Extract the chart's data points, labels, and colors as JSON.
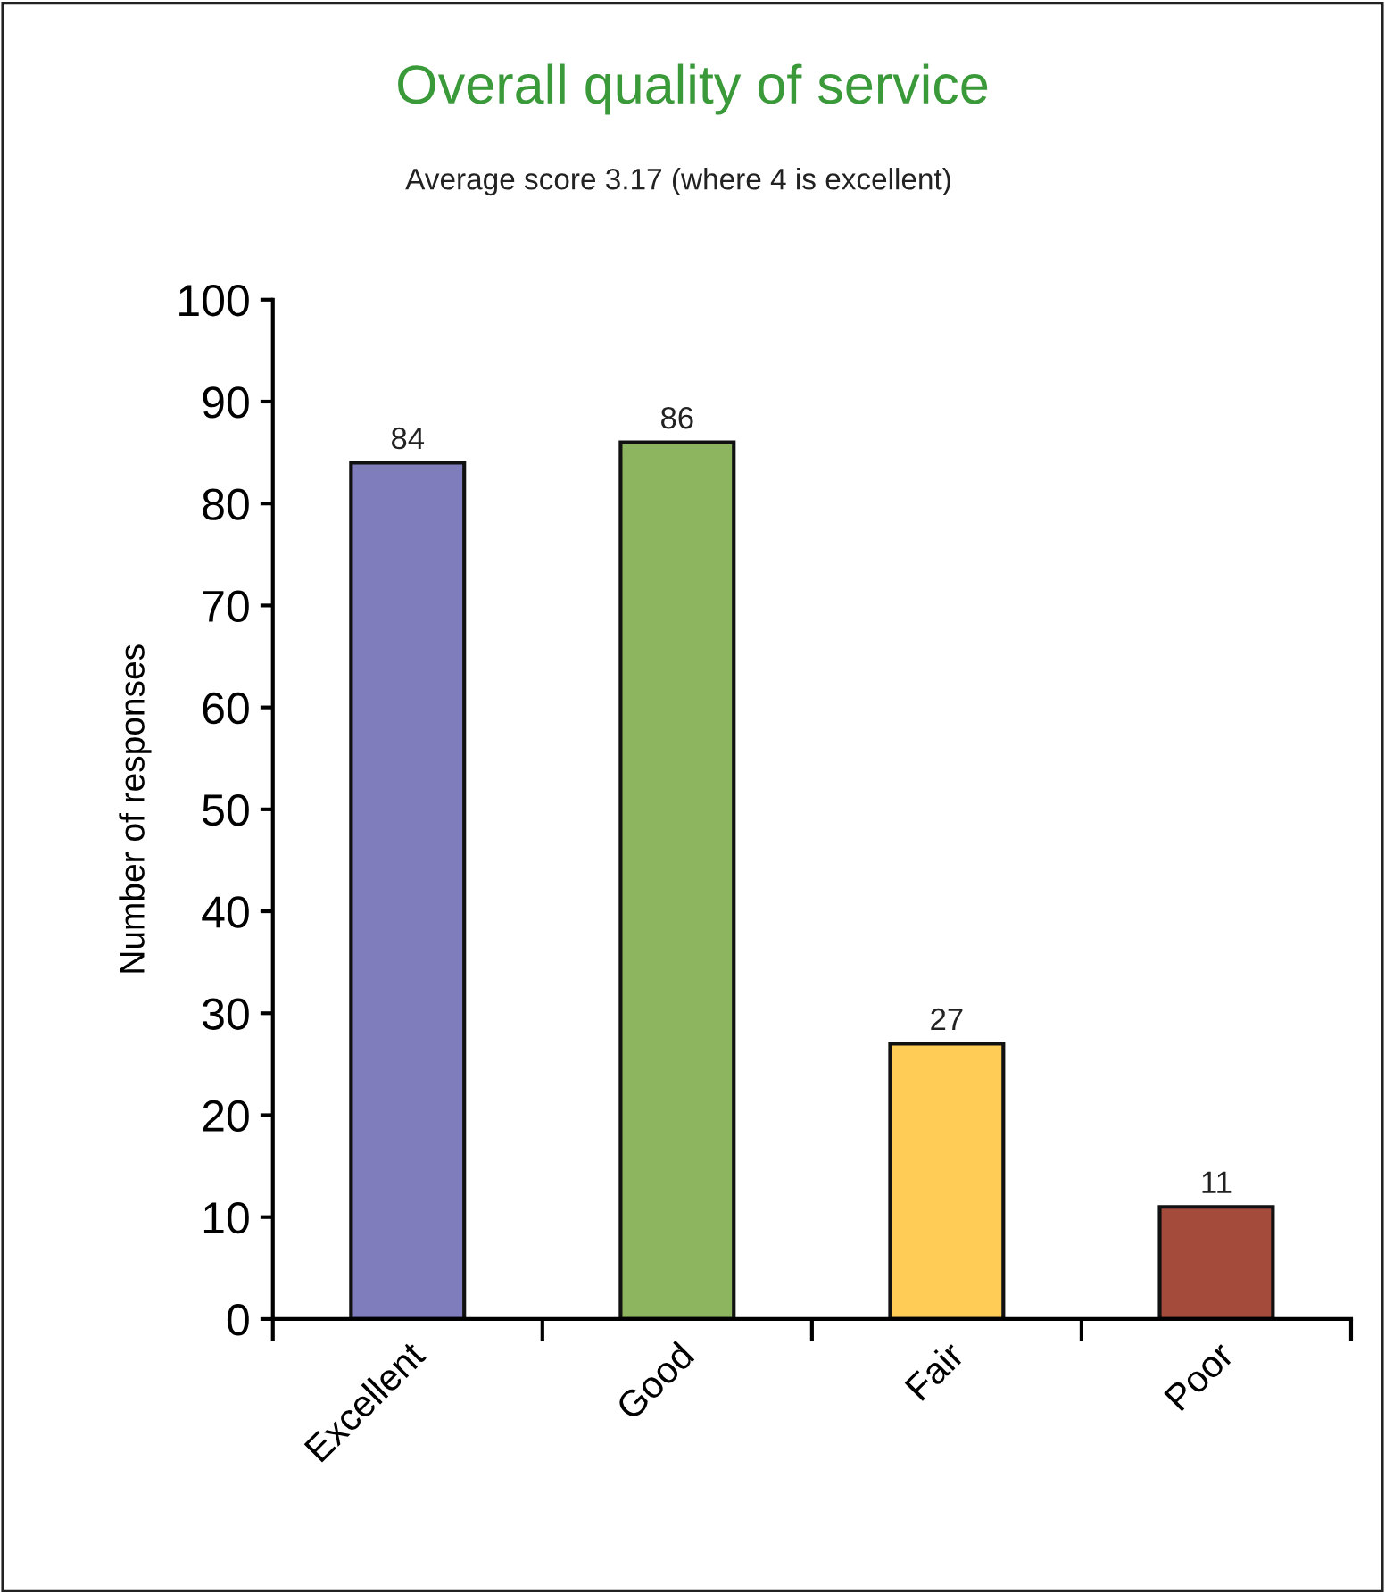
{
  "chart_data": {
    "type": "bar",
    "title": "Overall quality of service",
    "subtitle": "Average score 3.17 (where 4 is excellent)",
    "ylabel": "Number of responses",
    "categories": [
      "Excellent",
      "Good",
      "Fair",
      "Poor"
    ],
    "values": [
      84,
      86,
      27,
      11
    ],
    "colors": [
      "#7f7dbb",
      "#8db45f",
      "#ffcc55",
      "#a54b3b"
    ],
    "ylim": [
      0,
      100
    ],
    "yticks": [
      0,
      10,
      20,
      30,
      40,
      50,
      60,
      70,
      80,
      90,
      100
    ],
    "data_labels": true
  }
}
